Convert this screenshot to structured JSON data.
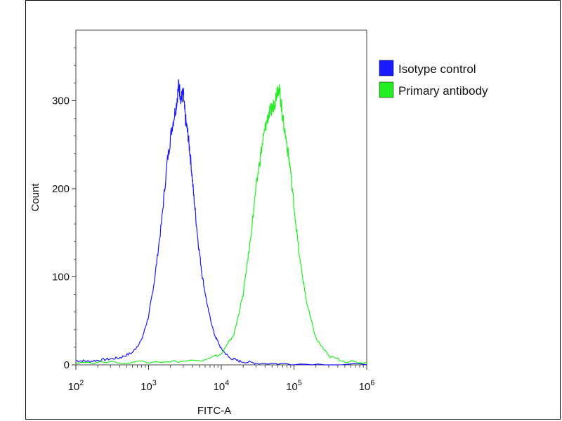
{
  "chart_data": {
    "type": "line",
    "title": "",
    "xlabel": "FITC-A",
    "ylabel": "Count",
    "x_scale": "log",
    "xlim": [
      100,
      1000000
    ],
    "ylim": [
      0,
      380
    ],
    "x_ticks": [
      {
        "value": 100,
        "base": "10",
        "exp": "2"
      },
      {
        "value": 1000,
        "base": "10",
        "exp": "3"
      },
      {
        "value": 10000,
        "base": "10",
        "exp": "4"
      },
      {
        "value": 100000,
        "base": "10",
        "exp": "5"
      },
      {
        "value": 1000000,
        "base": "10",
        "exp": "6"
      }
    ],
    "y_ticks": [
      0,
      100,
      200,
      300
    ],
    "y_tick_labels": [
      "0",
      "100",
      "200",
      "300"
    ],
    "grid": false,
    "legend_position": "top-right",
    "series": [
      {
        "name": "Isotype control",
        "color": "#1a1aff",
        "x": [
          100,
          150,
          250,
          400,
          600,
          800,
          1000,
          1200,
          1500,
          1800,
          2100,
          2400,
          2600,
          2800,
          3000,
          3200,
          3500,
          3800,
          4200,
          4800,
          5500,
          6500,
          8000,
          10000,
          13000,
          18000,
          30000,
          100000,
          1000000
        ],
        "y": [
          5,
          4,
          6,
          8,
          14,
          28,
          55,
          95,
          160,
          230,
          270,
          295,
          318,
          302,
          308,
          280,
          260,
          232,
          190,
          140,
          100,
          65,
          35,
          18,
          8,
          4,
          2,
          1,
          0
        ]
      },
      {
        "name": "Primary antibody",
        "color": "#22ee22",
        "x": [
          100,
          1000,
          5000,
          10000,
          15000,
          20000,
          25000,
          30000,
          35000,
          40000,
          45000,
          50000,
          55000,
          60000,
          65000,
          70000,
          80000,
          90000,
          100000,
          120000,
          150000,
          200000,
          300000,
          500000,
          1000000
        ],
        "y": [
          3,
          3,
          5,
          12,
          35,
          80,
          140,
          200,
          240,
          268,
          285,
          290,
          300,
          316,
          305,
          280,
          250,
          220,
          180,
          120,
          70,
          30,
          10,
          4,
          2
        ]
      }
    ]
  }
}
